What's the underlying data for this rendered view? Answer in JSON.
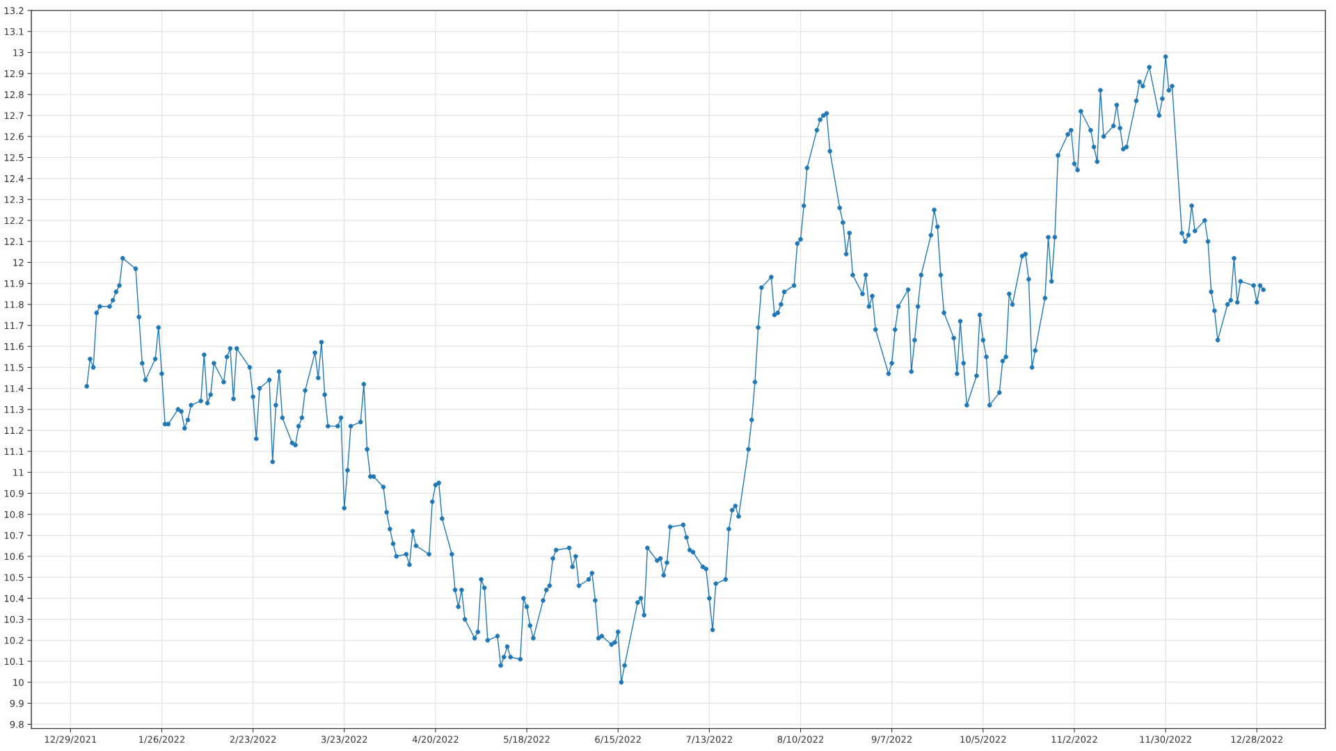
{
  "chart_data": {
    "type": "line",
    "x": [
      "2022-01-03",
      "2022-01-04",
      "2022-01-05",
      "2022-01-06",
      "2022-01-07",
      "2022-01-10",
      "2022-01-11",
      "2022-01-12",
      "2022-01-13",
      "2022-01-14",
      "2022-01-18",
      "2022-01-19",
      "2022-01-20",
      "2022-01-21",
      "2022-01-24",
      "2022-01-25",
      "2022-01-26",
      "2022-01-27",
      "2022-01-28",
      "2022-01-31",
      "2022-02-01",
      "2022-02-02",
      "2022-02-03",
      "2022-02-04",
      "2022-02-07",
      "2022-02-08",
      "2022-02-09",
      "2022-02-10",
      "2022-02-11",
      "2022-02-14",
      "2022-02-15",
      "2022-02-16",
      "2022-02-17",
      "2022-02-18",
      "2022-02-22",
      "2022-02-23",
      "2022-02-24",
      "2022-02-25",
      "2022-02-28",
      "2022-03-01",
      "2022-03-02",
      "2022-03-03",
      "2022-03-04",
      "2022-03-07",
      "2022-03-08",
      "2022-03-09",
      "2022-03-10",
      "2022-03-11",
      "2022-03-14",
      "2022-03-15",
      "2022-03-16",
      "2022-03-17",
      "2022-03-18",
      "2022-03-21",
      "2022-03-22",
      "2022-03-23",
      "2022-03-24",
      "2022-03-25",
      "2022-03-28",
      "2022-03-29",
      "2022-03-30",
      "2022-03-31",
      "2022-04-01",
      "2022-04-04",
      "2022-04-05",
      "2022-04-06",
      "2022-04-07",
      "2022-04-08",
      "2022-04-11",
      "2022-04-12",
      "2022-04-13",
      "2022-04-14",
      "2022-04-18",
      "2022-04-19",
      "2022-04-20",
      "2022-04-21",
      "2022-04-22",
      "2022-04-25",
      "2022-04-26",
      "2022-04-27",
      "2022-04-28",
      "2022-04-29",
      "2022-05-02",
      "2022-05-03",
      "2022-05-04",
      "2022-05-05",
      "2022-05-06",
      "2022-05-09",
      "2022-05-10",
      "2022-05-11",
      "2022-05-12",
      "2022-05-13",
      "2022-05-16",
      "2022-05-17",
      "2022-05-18",
      "2022-05-19",
      "2022-05-20",
      "2022-05-23",
      "2022-05-24",
      "2022-05-25",
      "2022-05-26",
      "2022-05-27",
      "2022-05-31",
      "2022-06-01",
      "2022-06-02",
      "2022-06-03",
      "2022-06-06",
      "2022-06-07",
      "2022-06-08",
      "2022-06-09",
      "2022-06-10",
      "2022-06-13",
      "2022-06-14",
      "2022-06-15",
      "2022-06-16",
      "2022-06-17",
      "2022-06-21",
      "2022-06-22",
      "2022-06-23",
      "2022-06-24",
      "2022-06-27",
      "2022-06-28",
      "2022-06-29",
      "2022-06-30",
      "2022-07-01",
      "2022-07-05",
      "2022-07-06",
      "2022-07-07",
      "2022-07-08",
      "2022-07-11",
      "2022-07-12",
      "2022-07-13",
      "2022-07-14",
      "2022-07-15",
      "2022-07-18",
      "2022-07-19",
      "2022-07-20",
      "2022-07-21",
      "2022-07-22",
      "2022-07-25",
      "2022-07-26",
      "2022-07-27",
      "2022-07-28",
      "2022-07-29",
      "2022-08-01",
      "2022-08-02",
      "2022-08-03",
      "2022-08-04",
      "2022-08-05",
      "2022-08-08",
      "2022-08-09",
      "2022-08-10",
      "2022-08-11",
      "2022-08-12",
      "2022-08-15",
      "2022-08-16",
      "2022-08-17",
      "2022-08-18",
      "2022-08-19",
      "2022-08-22",
      "2022-08-23",
      "2022-08-24",
      "2022-08-25",
      "2022-08-26",
      "2022-08-29",
      "2022-08-30",
      "2022-08-31",
      "2022-09-01",
      "2022-09-02",
      "2022-09-06",
      "2022-09-07",
      "2022-09-08",
      "2022-09-09",
      "2022-09-12",
      "2022-09-13",
      "2022-09-14",
      "2022-09-15",
      "2022-09-16",
      "2022-09-19",
      "2022-09-20",
      "2022-09-21",
      "2022-09-22",
      "2022-09-23",
      "2022-09-26",
      "2022-09-27",
      "2022-09-28",
      "2022-09-29",
      "2022-09-30",
      "2022-10-03",
      "2022-10-04",
      "2022-10-05",
      "2022-10-06",
      "2022-10-07",
      "2022-10-10",
      "2022-10-11",
      "2022-10-12",
      "2022-10-13",
      "2022-10-14",
      "2022-10-17",
      "2022-10-18",
      "2022-10-19",
      "2022-10-20",
      "2022-10-21",
      "2022-10-24",
      "2022-10-25",
      "2022-10-26",
      "2022-10-27",
      "2022-10-28",
      "2022-10-31",
      "2022-11-01",
      "2022-11-02",
      "2022-11-03",
      "2022-11-04",
      "2022-11-07",
      "2022-11-08",
      "2022-11-09",
      "2022-11-10",
      "2022-11-11",
      "2022-11-14",
      "2022-11-15",
      "2022-11-16",
      "2022-11-17",
      "2022-11-18",
      "2022-11-21",
      "2022-11-22",
      "2022-11-23",
      "2022-11-25",
      "2022-11-28",
      "2022-11-29",
      "2022-11-30",
      "2022-12-01",
      "2022-12-02",
      "2022-12-05",
      "2022-12-06",
      "2022-12-07",
      "2022-12-08",
      "2022-12-09",
      "2022-12-12",
      "2022-12-13",
      "2022-12-14",
      "2022-12-15",
      "2022-12-16",
      "2022-12-19",
      "2022-12-20",
      "2022-12-21",
      "2022-12-22",
      "2022-12-23",
      "2022-12-27",
      "2022-12-28",
      "2022-12-29",
      "2022-12-30"
    ],
    "series": [
      {
        "color": "#1f77b4",
        "values": [
          11.41,
          11.54,
          11.5,
          11.76,
          11.79,
          11.79,
          11.82,
          11.86,
          11.89,
          12.02,
          11.97,
          11.74,
          11.52,
          11.44,
          11.54,
          11.69,
          11.47,
          11.23,
          11.23,
          11.3,
          11.29,
          11.21,
          11.25,
          11.32,
          11.34,
          11.56,
          11.33,
          11.37,
          11.52,
          11.43,
          11.55,
          11.59,
          11.35,
          11.59,
          11.5,
          11.36,
          11.16,
          11.4,
          11.44,
          11.05,
          11.32,
          11.48,
          11.26,
          11.14,
          11.13,
          11.22,
          11.26,
          11.39,
          11.57,
          11.45,
          11.62,
          11.37,
          11.22,
          11.22,
          11.26,
          10.83,
          11.01,
          11.22,
          11.24,
          11.42,
          11.11,
          10.98,
          10.98,
          10.93,
          10.81,
          10.73,
          10.66,
          10.6,
          10.61,
          10.56,
          10.72,
          10.65,
          10.61,
          10.86,
          10.94,
          10.95,
          10.78,
          10.61,
          10.44,
          10.36,
          10.44,
          10.3,
          10.21,
          10.24,
          10.49,
          10.45,
          10.2,
          10.22,
          10.08,
          10.12,
          10.17,
          10.12,
          10.11,
          10.4,
          10.36,
          10.27,
          10.21,
          10.39,
          10.44,
          10.46,
          10.59,
          10.63,
          10.64,
          10.55,
          10.6,
          10.46,
          10.49,
          10.52,
          10.39,
          10.21,
          10.22,
          10.18,
          10.19,
          10.24,
          10.0,
          10.08,
          10.38,
          10.4,
          10.32,
          10.64,
          10.58,
          10.59,
          10.51,
          10.57,
          10.74,
          10.75,
          10.69,
          10.63,
          10.62,
          10.55,
          10.54,
          10.4,
          10.25,
          10.47,
          10.49,
          10.73,
          10.82,
          10.84,
          10.79,
          11.11,
          11.25,
          11.43,
          11.69,
          11.88,
          11.93,
          11.75,
          11.76,
          11.8,
          11.86,
          11.89,
          12.09,
          12.11,
          12.27,
          12.45,
          12.63,
          12.68,
          12.7,
          12.71,
          12.53,
          12.26,
          12.19,
          12.04,
          12.14,
          11.94,
          11.85,
          11.94,
          11.79,
          11.84,
          11.68,
          11.47,
          11.52,
          11.68,
          11.79,
          11.87,
          11.48,
          11.63,
          11.79,
          11.94,
          12.13,
          12.25,
          12.17,
          11.94,
          11.76,
          11.64,
          11.47,
          11.72,
          11.52,
          11.32,
          11.46,
          11.75,
          11.63,
          11.55,
          11.32,
          11.38,
          11.53,
          11.55,
          11.85,
          11.8,
          12.03,
          12.04,
          11.92,
          11.5,
          11.58,
          11.83,
          12.12,
          11.91,
          12.12,
          12.51,
          12.61,
          12.63,
          12.47,
          12.44,
          12.72,
          12.63,
          12.55,
          12.48,
          12.82,
          12.6,
          12.65,
          12.75,
          12.64,
          12.54,
          12.55,
          12.77,
          12.86,
          12.84,
          12.93,
          12.7,
          12.78,
          12.98,
          12.82,
          12.84,
          12.14,
          12.1,
          12.13,
          12.27,
          12.15,
          12.2,
          12.1,
          11.86,
          11.77,
          11.63,
          11.8,
          11.82,
          12.02,
          11.81,
          11.91,
          11.89,
          11.81,
          11.89,
          11.87
        ]
      }
    ],
    "xlim": [
      "2021-12-17",
      "2023-01-18"
    ],
    "ylim": [
      9.78,
      13.2
    ],
    "xticks": [
      {
        "value": "2021-12-29",
        "label": "12/29/2021"
      },
      {
        "value": "2022-01-26",
        "label": "1/26/2022"
      },
      {
        "value": "2022-02-23",
        "label": "2/23/2022"
      },
      {
        "value": "2022-03-23",
        "label": "3/23/2022"
      },
      {
        "value": "2022-04-20",
        "label": "4/20/2022"
      },
      {
        "value": "2022-05-18",
        "label": "5/18/2022"
      },
      {
        "value": "2022-06-15",
        "label": "6/15/2022"
      },
      {
        "value": "2022-07-13",
        "label": "7/13/2022"
      },
      {
        "value": "2022-08-10",
        "label": "8/10/2022"
      },
      {
        "value": "2022-09-07",
        "label": "9/7/2022"
      },
      {
        "value": "2022-10-05",
        "label": "10/5/2022"
      },
      {
        "value": "2022-11-02",
        "label": "11/2/2022"
      },
      {
        "value": "2022-11-30",
        "label": "11/30/2022"
      },
      {
        "value": "2022-12-28",
        "label": "12/28/2022"
      }
    ],
    "yticks": [
      9.8,
      9.9,
      10,
      10.1,
      10.2,
      10.3,
      10.4,
      10.5,
      10.6,
      10.7,
      10.8,
      10.9,
      11,
      11.1,
      11.2,
      11.3,
      11.4,
      11.5,
      11.6,
      11.7,
      11.8,
      11.9,
      12,
      12.1,
      12.2,
      12.3,
      12.4,
      12.5,
      12.6,
      12.7,
      12.8,
      12.9,
      13,
      13.1,
      13.2
    ],
    "grid": true,
    "marker": "circle",
    "line_style": "solid"
  }
}
